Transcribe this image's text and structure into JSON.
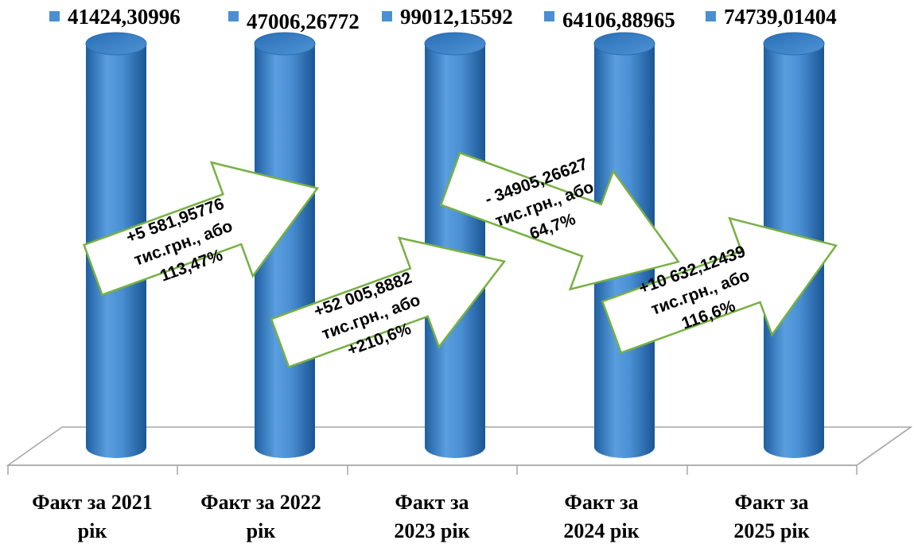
{
  "chart_data": {
    "type": "bar",
    "style": "3d-cylinder",
    "categories": [
      [
        "Факт за 2021",
        "рік"
      ],
      [
        "Факт за 2022",
        "рік"
      ],
      [
        "Факт за",
        "2023 рік"
      ],
      [
        "Факт за",
        "2024 рік"
      ],
      [
        "Факт за",
        "2025 рік"
      ]
    ],
    "values": [
      41424.30996,
      47006.26772,
      99012.15592,
      64106.88965,
      74739.01404
    ],
    "legend_labels": [
      "41424,30996",
      "47006,26772",
      "99012,15592",
      "64106,88965",
      "74739,01404"
    ],
    "legend_position": "top",
    "grid": false,
    "colors": {
      "bar": "#4a8fd3",
      "bar_dark": "#1f5fa0",
      "bar_light": "#7db7ea",
      "legend_marker": "#4a8fd3",
      "arrow_fill": "#ffffff",
      "arrow_border": "#77b043"
    },
    "annotations": [
      {
        "from": 0,
        "to": 1,
        "lines": [
          "+5 581,95776",
          "тис.грн., або",
          "113,47%"
        ]
      },
      {
        "from": 1,
        "to": 2,
        "lines": [
          "+52 005,8882",
          "тис.грн., або",
          "+210,6%"
        ]
      },
      {
        "from": 2,
        "to": 3,
        "lines": [
          "- 34905,26627",
          "тис.грн., або",
          "64,7%"
        ]
      },
      {
        "from": 3,
        "to": 4,
        "lines": [
          "+10 632,12439",
          "тис.грн., або",
          "116,6%"
        ]
      }
    ]
  }
}
